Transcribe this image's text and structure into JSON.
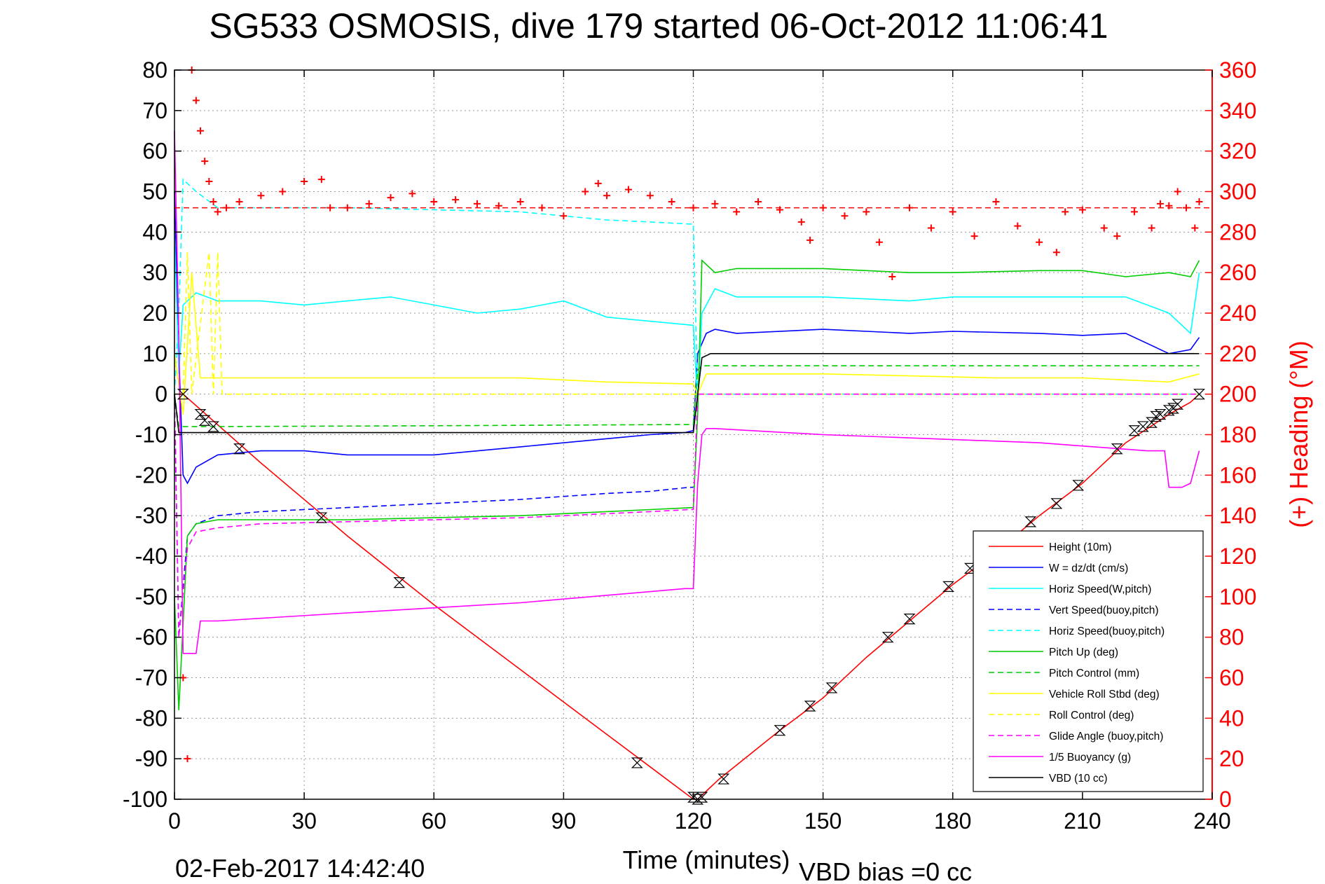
{
  "chart_data": {
    "type": "line",
    "title": "SG533 OSMOSIS, dive 179 started 06-Oct-2012 11:06:41",
    "xlabel": "Time (minutes)",
    "ylabel_right": "(+) Heading (°M)",
    "footer_date": "02-Feb-2017 14:42:40",
    "footer_bias": "VBD bias =0 cc",
    "xlim": [
      0,
      240
    ],
    "ylim": [
      -100,
      80
    ],
    "ylim_right": [
      0,
      360
    ],
    "grid": true,
    "legend_position": "bottom-right",
    "x_ticks": [
      "0",
      "30",
      "60",
      "90",
      "120",
      "150",
      "180",
      "210",
      "240"
    ],
    "y_ticks": [
      "80",
      "70",
      "60",
      "50",
      "40",
      "30",
      "20",
      "10",
      "0",
      "-10",
      "-20",
      "-30",
      "-40",
      "-50",
      "-60",
      "-70",
      "-80",
      "-90",
      "-100"
    ],
    "y_ticks_right": [
      "360",
      "340",
      "320",
      "300",
      "280",
      "260",
      "240",
      "220",
      "200",
      "180",
      "160",
      "140",
      "120",
      "100",
      "80",
      "60",
      "40",
      "20",
      "0"
    ],
    "series": [
      {
        "name": "Height (10m)",
        "color": "#ff0000",
        "style": "solid",
        "x": [
          0,
          2,
          20,
          40,
          60,
          80,
          100,
          110,
          120,
          121,
          126,
          140,
          150,
          160,
          170,
          180,
          190,
          200,
          210,
          220,
          230,
          235,
          237
        ],
        "y": [
          0,
          0,
          -17,
          -35,
          -52,
          -68,
          -84,
          -92,
          -100,
          -100,
          -95,
          -83,
          -75,
          -65,
          -56,
          -47,
          -39,
          -30,
          -22,
          -12,
          -5,
          -2,
          0
        ]
      },
      {
        "name": "W = dz/dt (cm/s)",
        "color": "#0000ff",
        "style": "solid",
        "x": [
          0,
          1,
          2,
          3,
          5,
          10,
          20,
          30,
          40,
          60,
          80,
          100,
          110,
          118,
          120,
          121,
          123,
          125,
          130,
          150,
          170,
          180,
          200,
          210,
          220,
          230,
          235,
          237
        ],
        "y": [
          50,
          10,
          -20,
          -22,
          -18,
          -15,
          -14,
          -14,
          -15,
          -15,
          -13,
          -11,
          -10,
          -9.5,
          -9,
          10,
          15,
          16,
          15,
          16,
          15,
          15.5,
          15,
          14.5,
          15,
          10,
          11,
          14
        ]
      },
      {
        "name": "Horiz Speed(W,pitch)",
        "color": "#00ffff",
        "style": "solid",
        "x": [
          0,
          1,
          2,
          5,
          10,
          20,
          30,
          40,
          50,
          60,
          70,
          80,
          90,
          100,
          110,
          120,
          121,
          122,
          125,
          130,
          150,
          170,
          180,
          200,
          210,
          220,
          230,
          235,
          237
        ],
        "y": [
          40,
          5,
          22,
          25,
          23,
          23,
          22,
          23,
          24,
          22,
          20,
          21,
          23,
          19,
          18,
          17,
          -3,
          20,
          26,
          24,
          24,
          23,
          24,
          24,
          24,
          24,
          20,
          15,
          30
        ]
      },
      {
        "name": "Vert Speed(buoy,pitch)",
        "color": "#0000ff",
        "style": "dashed",
        "x": [
          0,
          1,
          3,
          5,
          10,
          20,
          40,
          60,
          80,
          100,
          110,
          119,
          120
        ],
        "y": [
          0,
          -60,
          -35,
          -32,
          -30,
          -29,
          -28,
          -27,
          -26,
          -24.5,
          -24,
          -23,
          -23
        ]
      },
      {
        "name": "Horiz Speed(buoy,pitch)",
        "color": "#00ffff",
        "style": "dashed",
        "x": [
          0,
          1,
          2,
          3,
          5,
          10,
          20,
          40,
          60,
          80,
          100,
          110,
          119,
          120,
          121,
          237
        ],
        "y": [
          0,
          20,
          53,
          52,
          50,
          46,
          46,
          46,
          45.5,
          45,
          43,
          42.5,
          42,
          42,
          0,
          0
        ]
      },
      {
        "name": "Pitch Up (deg)",
        "color": "#00cc00",
        "style": "solid",
        "x": [
          0,
          1,
          3,
          5,
          10,
          20,
          40,
          60,
          80,
          100,
          110,
          120,
          121,
          122,
          125,
          130,
          150,
          170,
          180,
          200,
          210,
          220,
          230,
          235,
          237
        ],
        "y": [
          -50,
          -78,
          -35,
          -32,
          -31,
          -31,
          -31,
          -30.5,
          -30,
          -29,
          -28.5,
          -28,
          -5,
          33,
          30,
          31,
          31,
          30,
          30,
          30.5,
          30.5,
          29,
          30,
          29,
          33
        ]
      },
      {
        "name": "Pitch Control (mm)",
        "color": "#00cc00",
        "style": "dashed",
        "x": [
          0,
          1,
          2,
          10,
          60,
          120,
          121,
          122,
          237
        ],
        "y": [
          0,
          -8,
          -8,
          -8,
          -7.8,
          -7.5,
          6,
          7,
          7
        ]
      },
      {
        "name": "Vehicle Roll Stbd (deg)",
        "color": "#ffff00",
        "style": "solid",
        "x": [
          0,
          2,
          4,
          6,
          10,
          20,
          40,
          60,
          80,
          100,
          120,
          121,
          123,
          130,
          150,
          170,
          190,
          210,
          230,
          237
        ],
        "y": [
          10,
          -5,
          30,
          4,
          4,
          4,
          4,
          4,
          4,
          3,
          2.5,
          0,
          5,
          5,
          5,
          4.5,
          4,
          4,
          3,
          5
        ]
      },
      {
        "name": "Roll Control (deg)",
        "color": "#ffff00",
        "style": "dashed",
        "x": [
          0,
          2,
          3,
          4,
          8,
          9,
          10,
          11,
          237
        ],
        "y": [
          0,
          0,
          35,
          0,
          35,
          0,
          35,
          0,
          0
        ]
      },
      {
        "name": "Glide Angle (buoy,pitch)",
        "color": "#ff00ff",
        "style": "dashed",
        "x": [
          0,
          1,
          3,
          5,
          10,
          20,
          40,
          60,
          80,
          100,
          110,
          119,
          120,
          121,
          237
        ],
        "y": [
          0,
          -60,
          -38,
          -34,
          -33,
          -32,
          -31.5,
          -31,
          -30.5,
          -29.5,
          -29,
          -28.5,
          -28.5,
          0,
          0
        ]
      },
      {
        "name": "1/5 Buoyancy (g)",
        "color": "#ff00ff",
        "style": "solid",
        "x": [
          0,
          1,
          2,
          5,
          6,
          10,
          40,
          80,
          118,
          120,
          121,
          122,
          123,
          125,
          150,
          200,
          225,
          229,
          230,
          233,
          235,
          237
        ],
        "y": [
          65,
          15,
          -64,
          -64,
          -56,
          -56,
          -54,
          -51.5,
          -48,
          -48,
          -22,
          -10,
          -8.5,
          -8.5,
          -10,
          -12,
          -14,
          -14,
          -23,
          -23,
          -22,
          -14
        ]
      },
      {
        "name": "VBD (10 cc)",
        "color": "#000000",
        "style": "solid",
        "x": [
          0,
          1,
          2,
          60,
          120,
          121,
          122,
          124,
          200,
          237
        ],
        "y": [
          0,
          -9.5,
          -9.5,
          -9.5,
          -9.5,
          0,
          9,
          10,
          10,
          10
        ]
      }
    ],
    "heading": {
      "name": "(+) Heading",
      "color": "#ff0000",
      "marker": "+",
      "axis": "right",
      "x": [
        2,
        3,
        4,
        5,
        6,
        7,
        8,
        9,
        10,
        12,
        15,
        20,
        25,
        30,
        34,
        36,
        40,
        45,
        50,
        55,
        60,
        65,
        70,
        75,
        80,
        85,
        90,
        95,
        98,
        100,
        105,
        110,
        115,
        120,
        125,
        130,
        135,
        140,
        145,
        147,
        150,
        155,
        160,
        163,
        166,
        170,
        175,
        180,
        185,
        190,
        195,
        200,
        204,
        206,
        210,
        215,
        218,
        222,
        226,
        228,
        230,
        232,
        234,
        236,
        237
      ],
      "y": [
        60,
        20,
        360,
        345,
        330,
        315,
        305,
        295,
        290,
        292,
        295,
        298,
        300,
        305,
        306,
        292,
        292,
        294,
        297,
        299,
        295,
        296,
        294,
        293,
        295,
        292,
        288,
        300,
        304,
        298,
        301,
        298,
        295,
        292,
        294,
        290,
        295,
        291,
        285,
        276,
        292,
        288,
        290,
        275,
        258,
        292,
        282,
        290,
        278,
        295,
        283,
        275,
        270,
        290,
        291,
        282,
        278,
        290,
        282,
        294,
        293,
        300,
        292,
        282,
        295
      ]
    },
    "heading_ref": {
      "color": "#ff0000",
      "style": "dashed",
      "value": 292
    },
    "markers": {
      "name": "sample points",
      "symbol": "hourglass-x",
      "color": "#000000",
      "x": [
        2,
        6,
        7,
        9,
        15,
        34,
        52,
        107,
        120,
        121,
        122,
        127,
        140,
        147,
        152,
        165,
        170,
        179,
        184,
        198,
        204,
        209,
        218,
        222,
        224,
        226,
        227,
        228,
        230,
        231,
        232,
        237
      ],
      "y": [
        0,
        -5,
        -6.5,
        -8,
        -13.5,
        -30.5,
        -46.5,
        -91,
        -99.5,
        -100,
        -99.5,
        -95,
        -83,
        -77,
        -72.5,
        -60,
        -55.5,
        -47.5,
        -43,
        -31.5,
        -27,
        -22.5,
        -13.5,
        -9,
        -8,
        -7,
        -5.5,
        -5,
        -4,
        -3.5,
        -2.5,
        0
      ]
    }
  }
}
